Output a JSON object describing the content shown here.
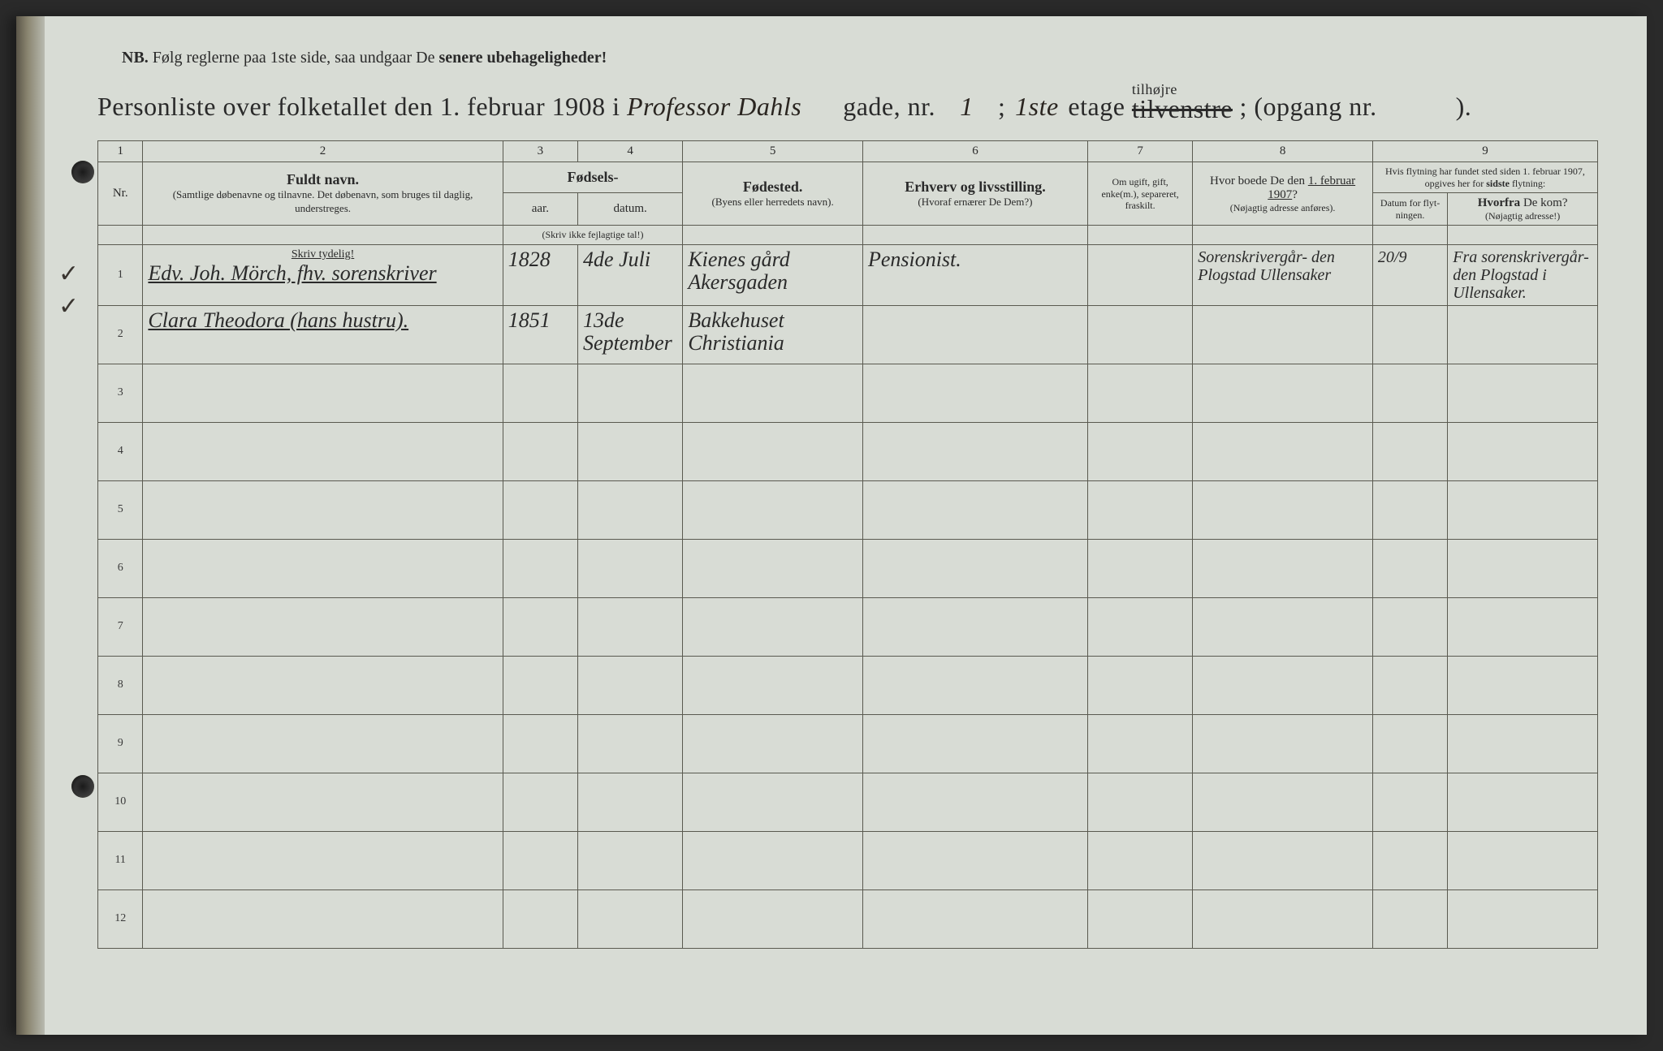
{
  "nb": {
    "prefix": "NB.",
    "text": "Følg reglerne paa 1ste side, saa undgaar De",
    "emphasis": "senere ubehageligheder!"
  },
  "title": {
    "prefix": "Personliste over folketallet den 1. februar 1908 i",
    "street_handwritten": "Professor Dahls",
    "gade_label": "gade, nr.",
    "gade_nr": "1",
    "semicolon": ";",
    "etage_nr": "1ste",
    "etage_label": "etage",
    "side_crossed": "tilvenstre",
    "side_above": "tilhøjre",
    "opgang_label": "; (opgang nr.",
    "opgang_nr": "",
    "closing": ")."
  },
  "columns": {
    "nums": [
      "1",
      "2",
      "3",
      "4",
      "5",
      "6",
      "7",
      "8",
      "9"
    ],
    "nr": "Nr.",
    "name_header": "Fuldt navn.",
    "name_sub": "(Samtlige døbenavne og tilnavne. Det døbenavn, som bruges til daglig, understreges.",
    "fodsels": "Fødsels-",
    "aar": "aar.",
    "datum": "datum.",
    "aar_datum_sub": "(Skriv ikke fejlagtige tal!)",
    "fodested": "Fødested.",
    "fodested_sub": "(Byens eller herredets navn).",
    "erhverv": "Erhverv og livsstilling.",
    "erhverv_sub": "(Hvoraf ernærer De Dem?)",
    "civilstand": "Om ugift, gift, enke(m.), separeret, fraskilt.",
    "boede_header": "Hvor boede De den 1. februar 1907?",
    "boede_sub": "(Nøjagtig adresse anføres).",
    "flytning_header": "Hvis flytning har fundet sted siden 1. februar 1907, opgives her for sidste flytning:",
    "flytning_datum": "Datum for flyt-ningen.",
    "flytning_hvorfra": "Hvorfra De kom?",
    "flytning_hvorfra_sub": "(Nøjagtig adresse!)",
    "skriv_tydelig": "Skriv tydelig!"
  },
  "rows": [
    {
      "nr": "1",
      "name": "Edv. Joh. Mörch, fhv. sorenskriver",
      "aar": "1828",
      "datum": "4de Juli",
      "fodested": "Kienes gård Akersgaden",
      "erhverv": "Pensionist.",
      "civilstand": "",
      "boede": "Sorenskrivergår- den Plogstad Ullensaker",
      "flyt_datum": "20/9",
      "hvorfra": "Fra sorenskrivergår- den Plogstad i Ullensaker."
    },
    {
      "nr": "2",
      "name": "Clara Theodora (hans hustru).",
      "aar": "1851",
      "datum": "13de September",
      "fodested": "Bakkehuset Christiania",
      "erhverv": "",
      "civilstand": "",
      "boede": "",
      "flyt_datum": "",
      "hvorfra": ""
    },
    {
      "nr": "3"
    },
    {
      "nr": "4"
    },
    {
      "nr": "5"
    },
    {
      "nr": "6"
    },
    {
      "nr": "7"
    },
    {
      "nr": "8"
    },
    {
      "nr": "9"
    },
    {
      "nr": "10"
    },
    {
      "nr": "11"
    },
    {
      "nr": "12"
    }
  ],
  "styling": {
    "page_bg": "#d8dcd5",
    "border_color": "#5a5a50",
    "text_color": "#2a2a2a",
    "handwriting_color": "#252018",
    "col_widths_pct": [
      3,
      24,
      5,
      7,
      12,
      15,
      7,
      12,
      5,
      10
    ]
  }
}
